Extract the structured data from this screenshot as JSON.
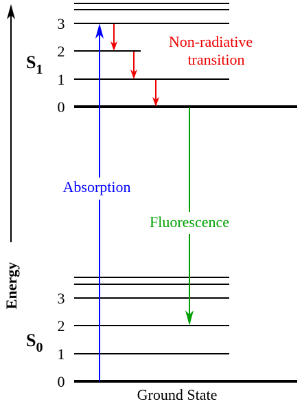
{
  "axis": {
    "label": "Energy"
  },
  "states": {
    "s1": {
      "main": "S",
      "sub": "1",
      "levels": [
        "3",
        "2",
        "1",
        "0"
      ]
    },
    "s0": {
      "main": "S",
      "sub": "0",
      "levels": [
        "3",
        "2",
        "1",
        "0"
      ]
    }
  },
  "labels": {
    "non_radiative_line1": "Non-radiative",
    "non_radiative_line2": "transition",
    "absorption": "Absorption",
    "fluorescence": "Fluorescence",
    "ground_state": "Ground State"
  },
  "colors": {
    "absorption": "#0000ff",
    "non_radiative": "#ee0000",
    "fluorescence": "#00a000",
    "level": "#000000"
  }
}
